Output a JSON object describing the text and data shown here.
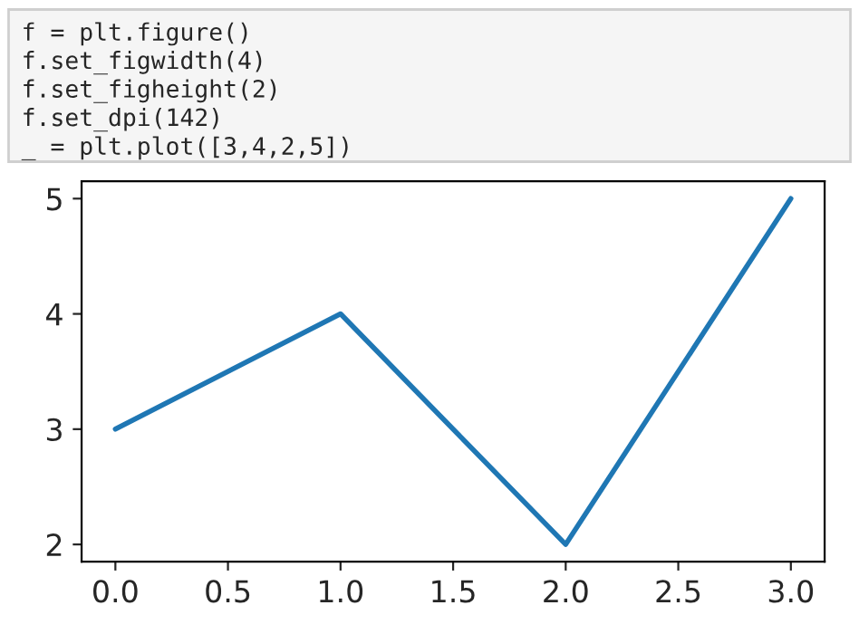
{
  "chart_data": {
    "type": "line",
    "x": [
      0,
      1,
      2,
      3
    ],
    "series": [
      {
        "color": "#1f77b4",
        "values": [
          3,
          4,
          2,
          5
        ]
      }
    ],
    "xlim": [
      -0.15,
      3.15
    ],
    "ylim": [
      1.85,
      5.15
    ],
    "xticks": [
      {
        "value": 0,
        "label": "0.0"
      },
      {
        "value": 0.5,
        "label": "0.5"
      },
      {
        "value": 1,
        "label": "1.0"
      },
      {
        "value": 1.5,
        "label": "1.5"
      },
      {
        "value": 2,
        "label": "2.0"
      },
      {
        "value": 2.5,
        "label": "2.5"
      },
      {
        "value": 3,
        "label": "3.0"
      }
    ],
    "yticks": [
      2,
      3,
      4,
      5
    ],
    "grid": false,
    "marker": "none",
    "line_style": "solid",
    "annotations": [
      "f = plt.figure()",
      "f.set_figwidth(4)",
      "f.set_figheight(2)",
      "f.set_dpi(142)",
      "_ = plt.plot([3,4,2,5])"
    ]
  }
}
